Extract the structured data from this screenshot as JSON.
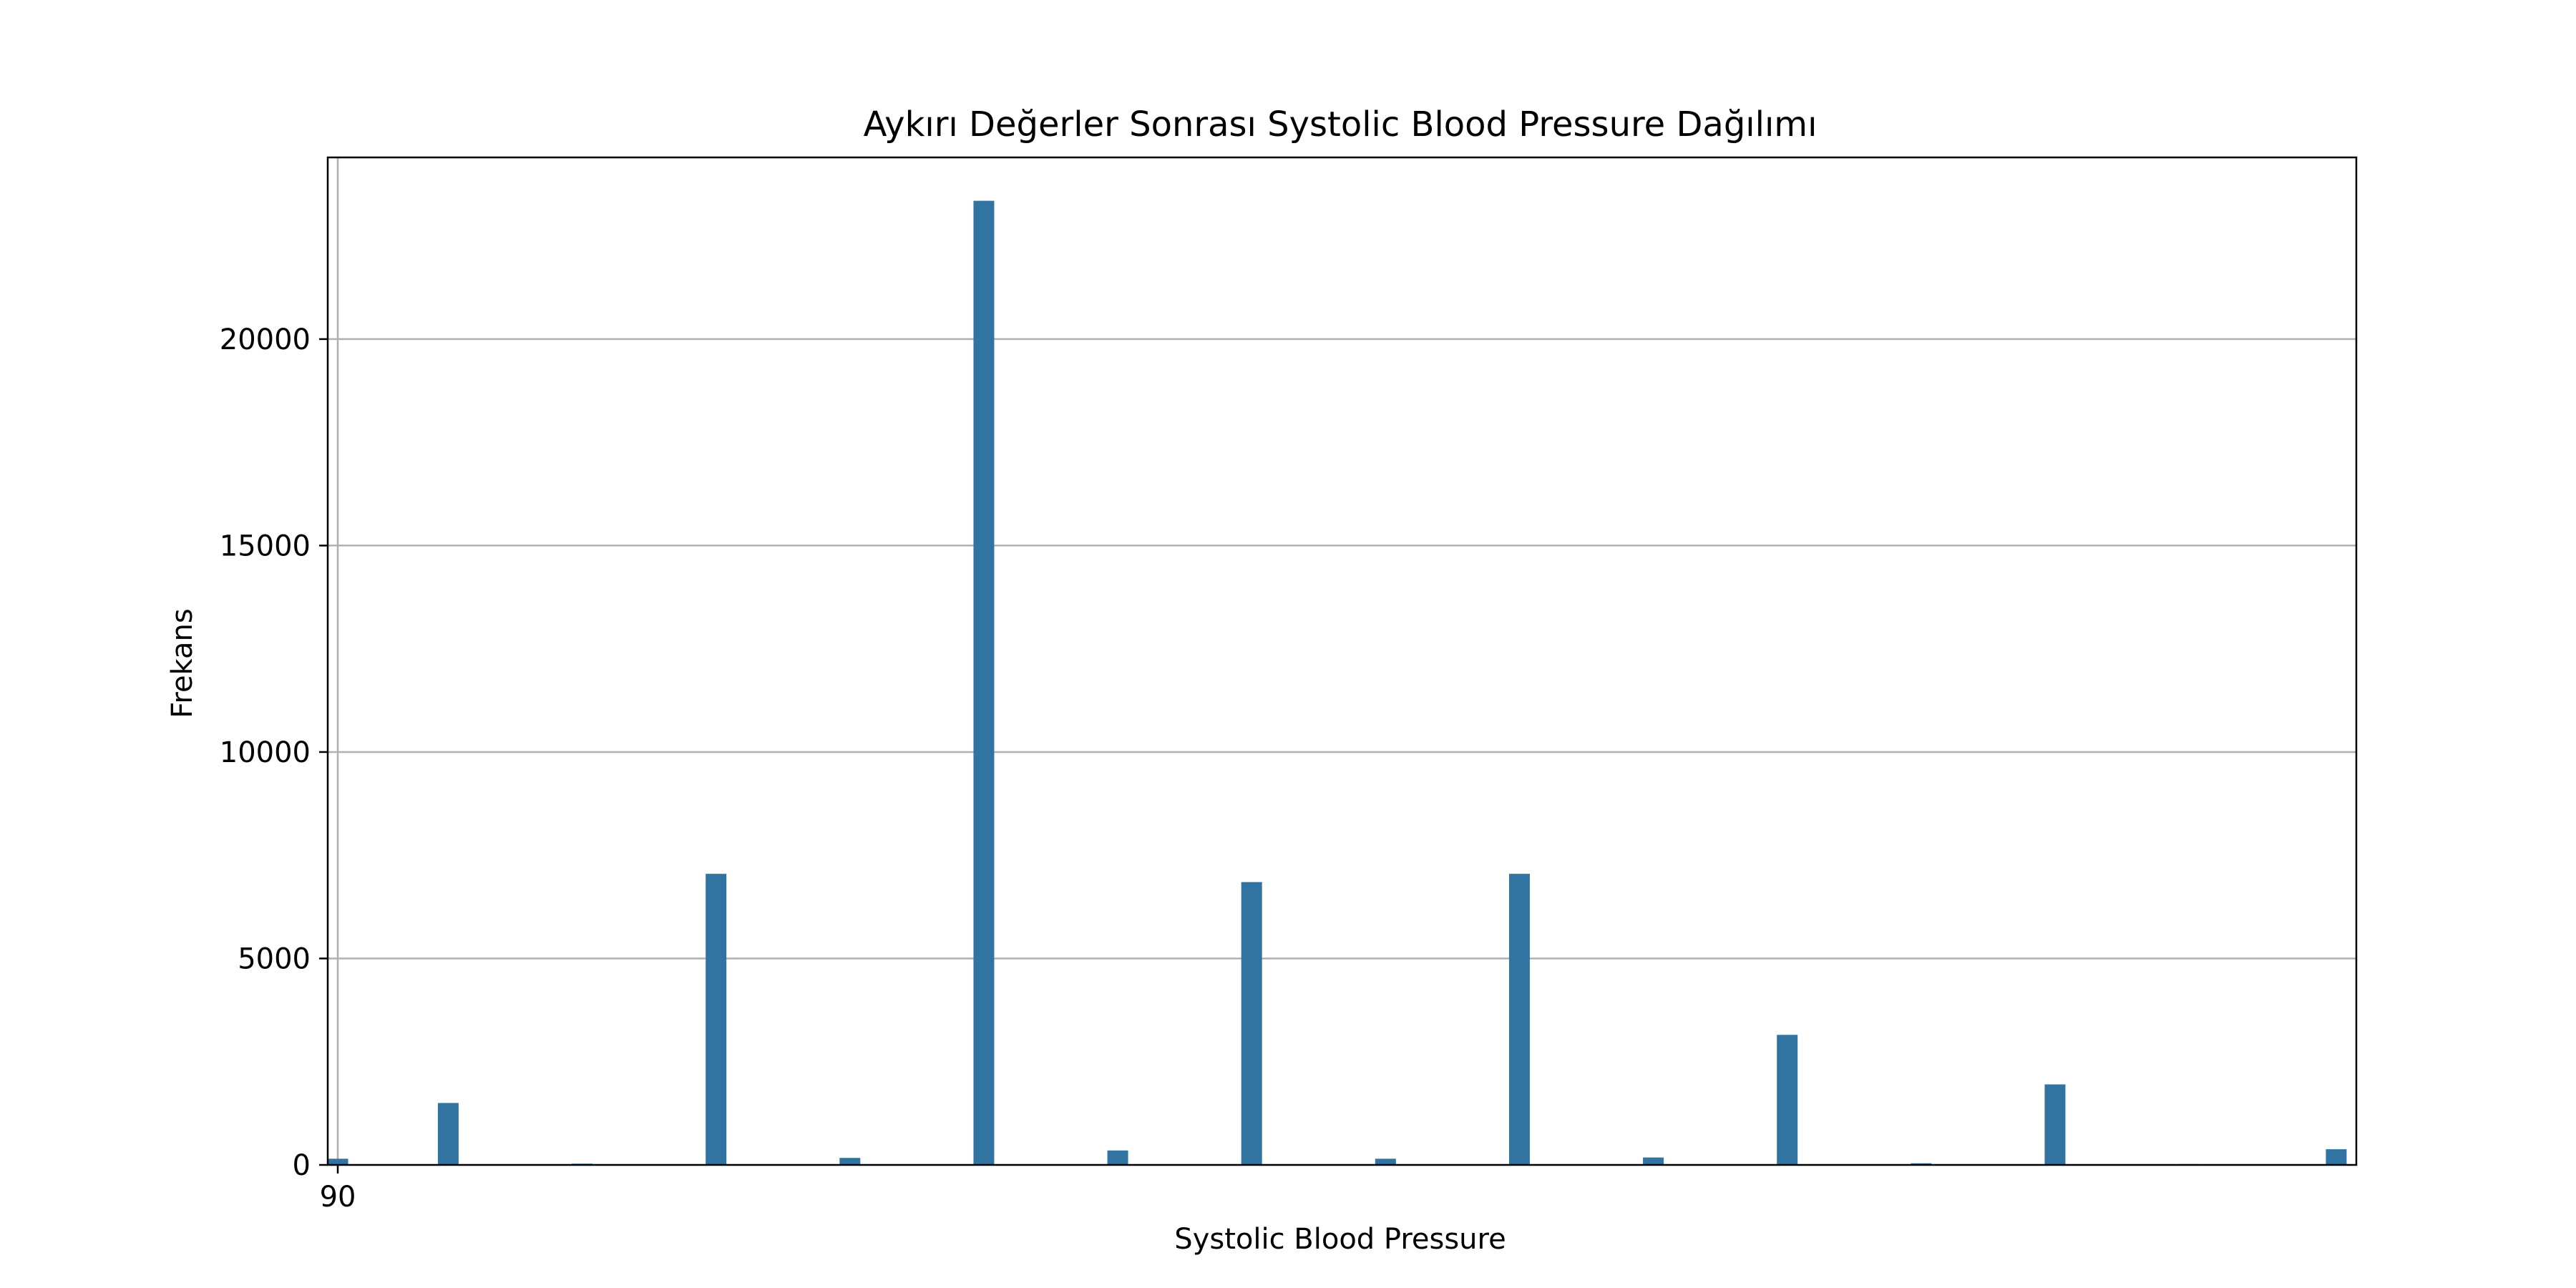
{
  "chart_data": {
    "type": "bar",
    "title": "Aykırı Değerler Sonrası Systolic Blood Pressure Dağılımı",
    "xlabel": "Systolic Blood Pressure",
    "ylabel": "Frekans",
    "x_tick_labels": [
      {
        "value": 90,
        "label": "90"
      }
    ],
    "y_tick_labels": [
      {
        "value": 0,
        "label": "0"
      },
      {
        "value": 5000,
        "label": "5000"
      },
      {
        "value": 10000,
        "label": "10000"
      },
      {
        "value": 15000,
        "label": "15000"
      },
      {
        "value": 20000,
        "label": "20000"
      }
    ],
    "xlim": [
      89.7,
      150.3
    ],
    "ylim": [
      0,
      24400
    ],
    "bar_color": "#3274a1",
    "grid": "on",
    "legend": "none",
    "bars": [
      {
        "x": 90,
        "value": 150
      },
      {
        "x": 93.3,
        "value": 1500
      },
      {
        "x": 97.3,
        "value": 30
      },
      {
        "x": 101.3,
        "value": 7050
      },
      {
        "x": 105.3,
        "value": 170
      },
      {
        "x": 109.3,
        "value": 23350
      },
      {
        "x": 113.3,
        "value": 350
      },
      {
        "x": 117.3,
        "value": 6850
      },
      {
        "x": 121.3,
        "value": 150
      },
      {
        "x": 125.3,
        "value": 7050
      },
      {
        "x": 129.3,
        "value": 180
      },
      {
        "x": 133.3,
        "value": 3150
      },
      {
        "x": 137.3,
        "value": 40
      },
      {
        "x": 141.3,
        "value": 1950
      },
      {
        "x": 145.3,
        "value": 20
      },
      {
        "x": 149.7,
        "value": 380
      }
    ]
  }
}
